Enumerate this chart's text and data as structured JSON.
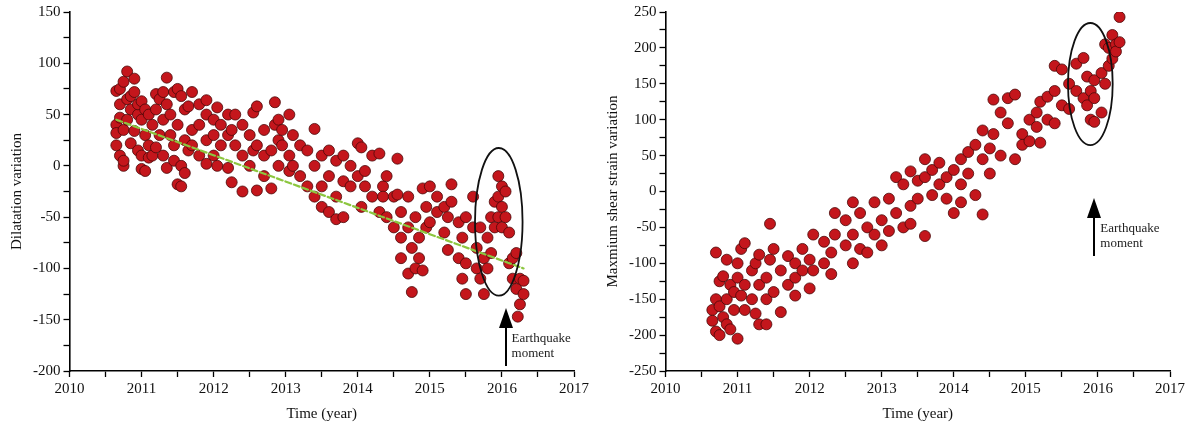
{
  "chart_data": [
    {
      "type": "scatter",
      "xlabel": "Time (year)",
      "ylabel": "Dilatation variation",
      "marker": "circle",
      "xlim": [
        2010,
        2017
      ],
      "ylim": [
        -200,
        150
      ],
      "xticks": [
        2010,
        {
          "value": 2010.5,
          "label": null
        },
        2011,
        {
          "value": 2011.5,
          "label": null
        },
        2012,
        {
          "value": 2012.5,
          "label": null
        },
        2013,
        {
          "value": 2013.5,
          "label": null
        },
        2014,
        {
          "value": 2014.5,
          "label": null
        },
        2015,
        {
          "value": 2015.5,
          "label": null
        },
        2016,
        {
          "value": 2016.5,
          "label": null
        },
        2017
      ],
      "yticks": [
        -200,
        {
          "value": -175,
          "label": null
        },
        -150,
        {
          "value": -125,
          "label": null
        },
        -100,
        {
          "value": -75,
          "label": null
        },
        -50,
        {
          "value": -25,
          "label": null
        },
        0,
        {
          "value": 25,
          "label": null
        },
        50,
        {
          "value": 75,
          "label": null
        },
        100,
        {
          "value": 125,
          "label": null
        },
        150
      ],
      "annotations": [
        "Earthquake moment"
      ],
      "series": [
        {
          "color": "#c4161c",
          "x": [
            2010.65,
            2010.65,
            2010.65,
            2010.65,
            2010.7,
            2010.7,
            2010.7,
            2010.7,
            2010.75,
            2010.75,
            2010.75,
            2010.75,
            2010.8,
            2010.8,
            2010.8,
            2010.85,
            2010.85,
            2010.85,
            2010.9,
            2010.9,
            2010.9,
            2010.95,
            2010.95,
            2010.95,
            2011.0,
            2011.0,
            2011.0,
            2011.0,
            2011.05,
            2011.05,
            2011.05,
            2011.1,
            2011.1,
            2011.1,
            2011.15,
            2011.15,
            2011.2,
            2011.2,
            2011.2,
            2011.25,
            2011.25,
            2011.3,
            2011.3,
            2011.3,
            2011.35,
            2011.35,
            2011.35,
            2011.4,
            2011.4,
            2011.45,
            2011.45,
            2011.45,
            2011.5,
            2011.5,
            2011.5,
            2011.55,
            2011.55,
            2011.55,
            2011.6,
            2011.6,
            2011.6,
            2011.65,
            2011.65,
            2011.7,
            2011.7,
            2011.7,
            2011.8,
            2011.8,
            2011.8,
            2011.9,
            2011.9,
            2011.9,
            2011.9,
            2012.0,
            2012.0,
            2012.0,
            2012.05,
            2012.05,
            2012.1,
            2012.1,
            2012.2,
            2012.2,
            2012.2,
            2012.25,
            2012.25,
            2012.3,
            2012.3,
            2012.4,
            2012.4,
            2012.4,
            2012.5,
            2012.5,
            2012.55,
            2012.55,
            2012.6,
            2012.6,
            2012.6,
            2012.7,
            2012.7,
            2012.7,
            2012.8,
            2012.8,
            2012.85,
            2012.85,
            2012.9,
            2012.9,
            2012.9,
            2012.95,
            2012.95,
            2013.05,
            2013.05,
            2013.05,
            2013.1,
            2013.1,
            2013.2,
            2013.2,
            2013.3,
            2013.3,
            2013.4,
            2013.4,
            2013.4,
            2013.5,
            2013.5,
            2013.5,
            2013.6,
            2013.6,
            2013.6,
            2013.7,
            2013.7,
            2013.7,
            2013.8,
            2013.8,
            2013.8,
            2013.9,
            2013.9,
            2014.0,
            2014.0,
            2014.05,
            2014.05,
            2014.1,
            2014.1,
            2014.2,
            2014.2,
            2014.3,
            2014.3,
            2014.35,
            2014.35,
            2014.4,
            2014.4,
            2014.5,
            2014.5,
            2014.55,
            2014.55,
            2014.6,
            2014.6,
            2014.6,
            2014.7,
            2014.7,
            2014.7,
            2014.75,
            2014.75,
            2014.8,
            2014.8,
            2014.85,
            2014.85,
            2014.9,
            2014.9,
            2014.95,
            2014.95,
            2015.0,
            2015.0,
            2015.1,
            2015.1,
            2015.2,
            2015.2,
            2015.25,
            2015.25,
            2015.3,
            2015.3,
            2015.4,
            2015.4,
            2015.45,
            2015.45,
            2015.5,
            2015.5,
            2015.5,
            2015.6,
            2015.6,
            2015.65,
            2015.65,
            2015.7,
            2015.7,
            2015.75,
            2015.75,
            2015.8,
            2015.8,
            2015.85,
            2015.85,
            2015.9,
            2015.9,
            2015.95,
            2015.95,
            2015.95,
            2016.0,
            2016.0,
            2016.0,
            2016.05,
            2016.05,
            2016.1,
            2016.1,
            2016.15,
            2016.15,
            2016.2,
            2016.2,
            2016.22,
            2016.25,
            2016.25,
            2016.3,
            2016.3
          ],
          "values": [
            40,
            73,
            20,
            32,
            47,
            60,
            10,
            75,
            0,
            82,
            35,
            5,
            92,
            65,
            45,
            22,
            68,
            55,
            85,
            34,
            72,
            50,
            60,
            15,
            -3,
            45,
            63,
            10,
            30,
            -5,
            55,
            20,
            50,
            8,
            40,
            10,
            55,
            18,
            70,
            65,
            30,
            72,
            10,
            45,
            86,
            -2,
            60,
            50,
            30,
            5,
            72,
            20,
            -18,
            75,
            40,
            -20,
            0,
            68,
            -7,
            55,
            25,
            58,
            15,
            72,
            35,
            20,
            40,
            10,
            60,
            50,
            2,
            64,
            25,
            30,
            45,
            10,
            57,
            0,
            40,
            20,
            50,
            30,
            -2,
            -16,
            35,
            50,
            20,
            10,
            -25,
            40,
            0,
            30,
            52,
            15,
            -24,
            58,
            20,
            10,
            -10,
            35,
            -22,
            15,
            40,
            62,
            45,
            0,
            25,
            20,
            35,
            50,
            10,
            -5,
            30,
            0,
            20,
            -10,
            -20,
            15,
            0,
            -30,
            36,
            -40,
            10,
            -20,
            -45,
            -10,
            15,
            -52,
            5,
            -30,
            -50,
            -15,
            10,
            -20,
            0,
            22,
            -10,
            18,
            -40,
            -5,
            -20,
            10,
            -30,
            -45,
            12,
            -20,
            -30,
            -50,
            -10,
            -60,
            -30,
            -28,
            7,
            -90,
            -45,
            -70,
            -105,
            -60,
            -30,
            -123,
            -80,
            -100,
            -50,
            -90,
            -70,
            -102,
            -22,
            -40,
            -60,
            -20,
            -55,
            -30,
            -45,
            -65,
            -40,
            -82,
            -50,
            -18,
            -35,
            -55,
            -90,
            -110,
            -70,
            -125,
            -95,
            -50,
            -30,
            -60,
            -80,
            -100,
            -60,
            -110,
            -125,
            -90,
            -70,
            -100,
            -50,
            -85,
            -35,
            -60,
            -10,
            -30,
            -50,
            -20,
            -40,
            -60,
            -25,
            -50,
            -65,
            -95,
            -90,
            -110,
            -120,
            -85,
            -147,
            -135,
            -110,
            -125,
            -112
          ]
        },
        {
          "type": "line",
          "color": "#8cc63f",
          "marker": "none",
          "line_style": "dashed",
          "x": [
            2010.65,
            2016.3
          ],
          "values": [
            45,
            -100
          ]
        }
      ]
    },
    {
      "type": "scatter",
      "xlabel": "Time (year)",
      "ylabel": "Maxmium shear strain variation",
      "marker": "circle",
      "xlim": [
        2010,
        2017
      ],
      "ylim": [
        -250,
        250
      ],
      "xticks": [
        2010,
        {
          "value": 2010.5,
          "label": null
        },
        2011,
        {
          "value": 2011.5,
          "label": null
        },
        2012,
        {
          "value": 2012.5,
          "label": null
        },
        2013,
        {
          "value": 2013.5,
          "label": null
        },
        2014,
        {
          "value": 2014.5,
          "label": null
        },
        2015,
        {
          "value": 2015.5,
          "label": null
        },
        2016,
        {
          "value": 2016.5,
          "label": null
        },
        2017
      ],
      "yticks": [
        -250,
        {
          "value": -225,
          "label": null
        },
        -200,
        {
          "value": -175,
          "label": null
        },
        -150,
        {
          "value": -125,
          "label": null
        },
        -100,
        {
          "value": -75,
          "label": null
        },
        -50,
        {
          "value": -25,
          "label": null
        },
        0,
        {
          "value": 25,
          "label": null
        },
        50,
        {
          "value": 75,
          "label": null
        },
        100,
        {
          "value": 125,
          "label": null
        },
        150,
        {
          "value": 175,
          "label": null
        },
        200,
        {
          "value": 225,
          "label": null
        },
        250
      ],
      "annotations": [
        "Earthquake moment"
      ],
      "series": [
        {
          "color": "#c4161c",
          "x": [
            2010.65,
            2010.65,
            2010.7,
            2010.7,
            2010.7,
            2010.75,
            2010.75,
            2010.75,
            2010.8,
            2010.8,
            2010.85,
            2010.85,
            2010.85,
            2010.9,
            2010.9,
            2010.95,
            2010.95,
            2011.0,
            2011.0,
            2011.0,
            2011.05,
            2011.05,
            2011.1,
            2011.1,
            2011.1,
            2011.2,
            2011.2,
            2011.25,
            2011.25,
            2011.3,
            2011.3,
            2011.3,
            2011.4,
            2011.4,
            2011.4,
            2011.45,
            2011.45,
            2011.5,
            2011.5,
            2011.6,
            2011.6,
            2011.7,
            2011.7,
            2011.8,
            2011.8,
            2011.8,
            2011.9,
            2011.9,
            2012.0,
            2012.0,
            2012.05,
            2012.05,
            2012.2,
            2012.2,
            2012.3,
            2012.3,
            2012.35,
            2012.35,
            2012.5,
            2012.5,
            2012.6,
            2012.6,
            2012.6,
            2012.7,
            2012.7,
            2012.8,
            2012.8,
            2012.9,
            2012.9,
            2013.0,
            2013.0,
            2013.1,
            2013.1,
            2013.2,
            2013.2,
            2013.3,
            2013.3,
            2013.4,
            2013.4,
            2013.4,
            2013.5,
            2013.5,
            2013.6,
            2013.6,
            2013.6,
            2013.7,
            2013.7,
            2013.8,
            2013.8,
            2013.9,
            2013.9,
            2014.0,
            2014.0,
            2014.1,
            2014.1,
            2014.1,
            2014.2,
            2014.2,
            2014.3,
            2014.3,
            2014.4,
            2014.4,
            2014.4,
            2014.5,
            2014.5,
            2014.55,
            2014.55,
            2014.65,
            2014.65,
            2014.75,
            2014.75,
            2014.85,
            2014.85,
            2014.95,
            2014.95,
            2015.05,
            2015.05,
            2015.15,
            2015.15,
            2015.2,
            2015.2,
            2015.3,
            2015.3,
            2015.4,
            2015.4,
            2015.4,
            2015.5,
            2015.5,
            2015.6,
            2015.6,
            2015.7,
            2015.7,
            2015.8,
            2015.8,
            2015.85,
            2015.85,
            2015.9,
            2015.9,
            2015.95,
            2015.95,
            2015.95,
            2016.05,
            2016.05,
            2016.1,
            2016.1,
            2016.15,
            2016.15,
            2016.2,
            2016.2,
            2016.25,
            2016.25,
            2016.3,
            2016.3
          ],
          "values": [
            -165,
            -180,
            -85,
            -150,
            -195,
            -125,
            -200,
            -160,
            -118,
            -175,
            -95,
            -185,
            -150,
            -130,
            -192,
            -165,
            -140,
            -205,
            -120,
            -100,
            -80,
            -145,
            -72,
            -130,
            -165,
            -110,
            -150,
            -100,
            -170,
            -88,
            -185,
            -130,
            -150,
            -185,
            -120,
            -45,
            -95,
            -80,
            -140,
            -110,
            -168,
            -90,
            -130,
            -120,
            -100,
            -145,
            -80,
            -110,
            -95,
            -135,
            -60,
            -110,
            -70,
            -100,
            -85,
            -115,
            -30,
            -60,
            -40,
            -75,
            -100,
            -15,
            -60,
            -30,
            -80,
            -50,
            -85,
            -15,
            -60,
            -40,
            -75,
            -10,
            -55,
            20,
            -30,
            -50,
            10,
            28,
            -20,
            -45,
            -10,
            15,
            -62,
            45,
            20,
            30,
            -5,
            40,
            10,
            20,
            -10,
            -30,
            30,
            45,
            10,
            -15,
            55,
            25,
            65,
            -5,
            -32,
            45,
            85,
            25,
            60,
            128,
            80,
            110,
            50,
            130,
            95,
            135,
            45,
            80,
            65,
            100,
            70,
            110,
            90,
            68,
            125,
            132,
            100,
            175,
            95,
            140,
            170,
            120,
            150,
            115,
            178,
            140,
            186,
            130,
            120,
            160,
            100,
            140,
            97,
            130,
            155,
            110,
            165,
            205,
            150,
            175,
            200,
            218,
            185,
            205,
            195,
            243,
            208
          ]
        }
      ]
    }
  ]
}
